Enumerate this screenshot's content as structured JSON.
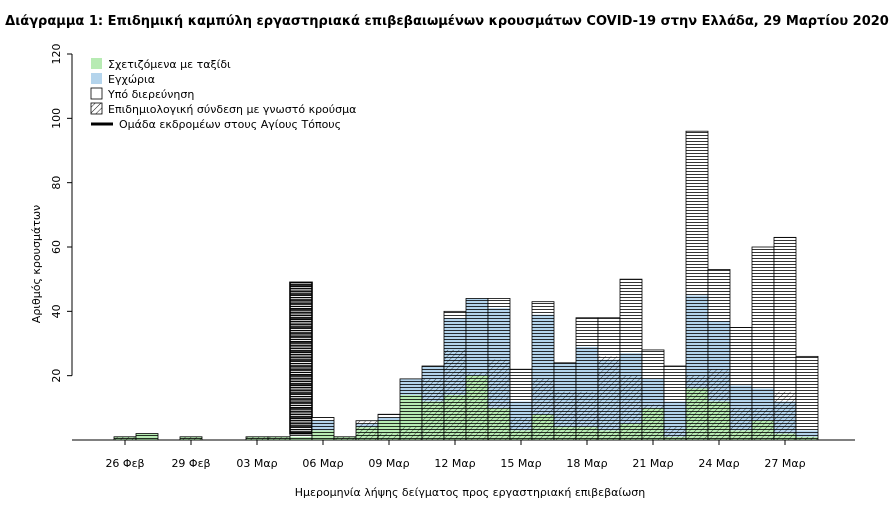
{
  "title": "Διάγραμμα 1: Επιδημική καμπύλη εργαστηριακά επιβεβαιωμένων κρουσμάτων COVID-19 στην Ελλάδα, 29 Μαρτίου 2020",
  "colors": {
    "travel": "#b7ebb3",
    "local": "#b4d4ec",
    "investigation": "#ffffff",
    "link": "#000000",
    "cluster": "#000000"
  },
  "chart_data": {
    "type": "bar",
    "title": "Διάγραμμα 1: Επιδημική καμπύλη εργαστηριακά επιβεβαιωμένων κρουσμάτων COVID-19 στην Ελλάδα, 29 Μαρτίου 2020",
    "xlabel": "Ημερομηνία λήψης δείγματος προς εργαστηριακή επιβεβαίωση",
    "ylabel": "Αριθμός κρουσμάτων",
    "ylim": [
      0,
      120
    ],
    "yticks": [
      20,
      40,
      60,
      80,
      100,
      120
    ],
    "xtick_labels": [
      "26 Φεβ",
      "29 Φεβ",
      "03 Μαρ",
      "06 Μαρ",
      "09 Μαρ",
      "12 Μαρ",
      "15 Μαρ",
      "18 Μαρ",
      "21 Μαρ",
      "24 Μαρ",
      "27 Μαρ"
    ],
    "stacked": true,
    "legend": {
      "position": "top-left",
      "entries": [
        {
          "label": "Σχετιζόμενα με ταξίδι",
          "key": "travel"
        },
        {
          "label": "Εγχώρια",
          "key": "local"
        },
        {
          "label": "Υπό διερεύνηση",
          "key": "investigation"
        },
        {
          "label": "Επιδημιολογική σύνδεση με γνωστό κρούσμα",
          "key": "link"
        },
        {
          "label": "Ομάδα εκδρομέων στους Αγίους Τόπους",
          "key": "cluster"
        }
      ]
    },
    "days": [
      {
        "date": "26 Φεβ",
        "travel": 1,
        "local": 0,
        "investigation": 0,
        "link": 1,
        "cluster": 0
      },
      {
        "date": "27 Φεβ",
        "travel": 2,
        "local": 0,
        "investigation": 0,
        "link": 0,
        "cluster": 0
      },
      {
        "date": "28 Φεβ",
        "travel": 0,
        "local": 0,
        "investigation": 0,
        "link": 0,
        "cluster": 0
      },
      {
        "date": "29 Φεβ",
        "travel": 1,
        "local": 0,
        "investigation": 0,
        "link": 1,
        "cluster": 0
      },
      {
        "date": "01 Μαρ",
        "travel": 0,
        "local": 0,
        "investigation": 0,
        "link": 0,
        "cluster": 0
      },
      {
        "date": "02 Μαρ",
        "travel": 0,
        "local": 0,
        "investigation": 0,
        "link": 0,
        "cluster": 0
      },
      {
        "date": "03 Μαρ",
        "travel": 1,
        "local": 0,
        "investigation": 0,
        "link": 1,
        "cluster": 0
      },
      {
        "date": "04 Μαρ",
        "travel": 1,
        "local": 0,
        "investigation": 0,
        "link": 1,
        "cluster": 0
      },
      {
        "date": "05 Μαρ",
        "travel": 1,
        "local": 0,
        "investigation": 1,
        "link": 0,
        "cluster": 47
      },
      {
        "date": "06 Μαρ",
        "travel": 3,
        "local": 3,
        "investigation": 1,
        "link": 0,
        "cluster": 0
      },
      {
        "date": "07 Μαρ",
        "travel": 1,
        "local": 0,
        "investigation": 0,
        "link": 6,
        "cluster": 0
      },
      {
        "date": "08 Μαρ",
        "travel": 4,
        "local": 1,
        "investigation": 1,
        "link": 6,
        "cluster": 0
      },
      {
        "date": "09 Μαρ",
        "travel": 6,
        "local": 1,
        "investigation": 1,
        "link": 2,
        "cluster": 0
      },
      {
        "date": "10 Μαρ",
        "travel": 14,
        "local": 5,
        "investigation": 0,
        "link": 4,
        "cluster": 0
      },
      {
        "date": "11 Μαρ",
        "travel": 12,
        "local": 11,
        "investigation": 0,
        "link": 19,
        "cluster": 0
      },
      {
        "date": "12 Μαρ",
        "travel": 14,
        "local": 24,
        "investigation": 2,
        "link": 28,
        "cluster": 0
      },
      {
        "date": "13 Μαρ",
        "travel": 20,
        "local": 24,
        "investigation": 0,
        "link": 21,
        "cluster": 0
      },
      {
        "date": "14 Μαρ",
        "travel": 10,
        "local": 31,
        "investigation": 3,
        "link": 25,
        "cluster": 0
      },
      {
        "date": "15 Μαρ",
        "travel": 3,
        "local": 9,
        "investigation": 10,
        "link": 7,
        "cluster": 0
      },
      {
        "date": "16 Μαρ",
        "travel": 8,
        "local": 31,
        "investigation": 4,
        "link": 19,
        "cluster": 0
      },
      {
        "date": "17 Μαρ",
        "travel": 4,
        "local": 20,
        "investigation": 0,
        "link": 15,
        "cluster": 0
      },
      {
        "date": "18 Μαρ",
        "travel": 4,
        "local": 25,
        "investigation": 9,
        "link": 15,
        "cluster": 0
      },
      {
        "date": "19 Μαρ",
        "travel": 3,
        "local": 22,
        "investigation": 13,
        "link": 26,
        "cluster": 0
      },
      {
        "date": "20 Μαρ",
        "travel": 5,
        "local": 22,
        "investigation": 23,
        "link": 20,
        "cluster": 0
      },
      {
        "date": "21 Μαρ",
        "travel": 10,
        "local": 9,
        "investigation": 9,
        "link": 11,
        "cluster": 0
      },
      {
        "date": "22 Μαρ",
        "travel": 1,
        "local": 11,
        "investigation": 11,
        "link": 4,
        "cluster": 0
      },
      {
        "date": "23 Μαρ",
        "travel": 16,
        "local": 29,
        "investigation": 51,
        "link": 20,
        "cluster": 0
      },
      {
        "date": "24 Μαρ",
        "travel": 12,
        "local": 25,
        "investigation": 16,
        "link": 22,
        "cluster": 0
      },
      {
        "date": "25 Μαρ",
        "travel": 3,
        "local": 14,
        "investigation": 18,
        "link": 10,
        "cluster": 0
      },
      {
        "date": "26 Μαρ",
        "travel": 6,
        "local": 10,
        "investigation": 44,
        "link": 10,
        "cluster": 0
      },
      {
        "date": "27 Μαρ",
        "travel": 2,
        "local": 10,
        "investigation": 51,
        "link": 15,
        "cluster": 0
      },
      {
        "date": "28 Μαρ",
        "travel": 1,
        "local": 2,
        "investigation": 23,
        "link": 1,
        "cluster": 0
      }
    ]
  }
}
